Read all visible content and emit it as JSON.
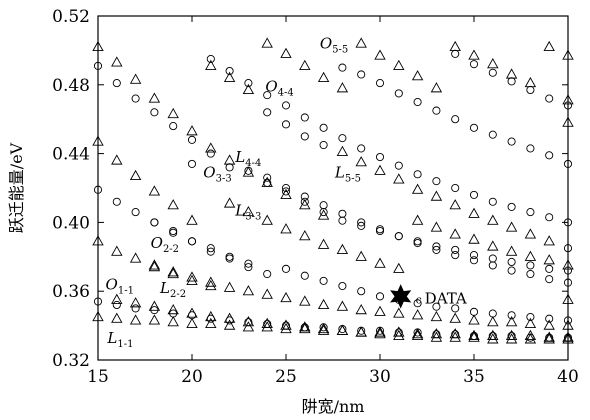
{
  "chart_data": {
    "type": "scatter",
    "title": "",
    "xlabel": "阱宽/nm",
    "ylabel": "跃迁能量/eV",
    "xlim": [
      15,
      40
    ],
    "ylim": [
      0.32,
      0.52
    ],
    "xticks": [
      15,
      20,
      25,
      30,
      35,
      40
    ],
    "yticks": [
      0.32,
      0.36,
      0.4,
      0.44,
      0.48,
      0.52
    ],
    "ytick_labels": [
      "0.32",
      "0.36",
      "0.40",
      "0.44",
      "0.48",
      "0.52"
    ],
    "grid": false,
    "series": [
      {
        "name": "",
        "marker": "triangle",
        "points": [
          [
            15,
            0.502
          ],
          [
            16,
            0.493
          ],
          [
            17,
            0.483
          ],
          [
            18,
            0.472
          ],
          [
            19,
            0.463
          ],
          [
            20,
            0.453
          ],
          [
            21,
            0.491
          ],
          [
            22,
            0.484
          ],
          [
            23,
            0.477
          ],
          [
            24,
            0.504
          ],
          [
            25,
            0.498
          ],
          [
            26,
            0.491
          ],
          [
            27,
            0.484
          ],
          [
            28,
            0.478
          ],
          [
            29,
            0.504
          ],
          [
            30,
            0.497
          ],
          [
            31,
            0.491
          ],
          [
            32,
            0.485
          ],
          [
            33,
            0.478
          ],
          [
            34,
            0.502
          ],
          [
            35,
            0.497
          ],
          [
            36,
            0.492
          ],
          [
            37,
            0.486
          ],
          [
            38,
            0.481
          ],
          [
            39,
            0.502
          ],
          [
            40,
            0.497
          ],
          [
            15,
            0.447
          ],
          [
            16,
            0.436
          ],
          [
            17,
            0.427
          ],
          [
            18,
            0.418
          ],
          [
            19,
            0.41
          ],
          [
            20,
            0.401
          ],
          [
            21,
            0.443
          ],
          [
            22,
            0.436
          ],
          [
            23,
            0.429
          ],
          [
            24,
            0.423
          ],
          [
            25,
            0.416
          ],
          [
            26,
            0.41
          ],
          [
            27,
            0.404
          ],
          [
            28,
            0.441
          ],
          [
            29,
            0.435
          ],
          [
            30,
            0.43
          ],
          [
            31,
            0.425
          ],
          [
            32,
            0.419
          ],
          [
            33,
            0.415
          ],
          [
            34,
            0.41
          ],
          [
            35,
            0.405
          ],
          [
            36,
            0.401
          ],
          [
            37,
            0.397
          ],
          [
            38,
            0.393
          ],
          [
            39,
            0.389
          ],
          [
            40,
            0.471
          ],
          [
            15,
            0.389
          ],
          [
            16,
            0.383
          ],
          [
            17,
            0.379
          ],
          [
            18,
            0.374
          ],
          [
            19,
            0.37
          ],
          [
            20,
            0.366
          ],
          [
            21,
            0.363
          ],
          [
            22,
            0.411
          ],
          [
            23,
            0.406
          ],
          [
            24,
            0.401
          ],
          [
            25,
            0.396
          ],
          [
            26,
            0.392
          ],
          [
            27,
            0.387
          ],
          [
            28,
            0.384
          ],
          [
            29,
            0.38
          ],
          [
            30,
            0.376
          ],
          [
            31,
            0.373
          ],
          [
            32,
            0.401
          ],
          [
            33,
            0.397
          ],
          [
            34,
            0.393
          ],
          [
            35,
            0.39
          ],
          [
            36,
            0.386
          ],
          [
            37,
            0.383
          ],
          [
            38,
            0.38
          ],
          [
            39,
            0.378
          ],
          [
            40,
            0.375
          ],
          [
            15,
            0.345
          ],
          [
            16,
            0.344
          ],
          [
            17,
            0.343
          ],
          [
            18,
            0.343
          ],
          [
            19,
            0.342
          ],
          [
            20,
            0.341
          ],
          [
            21,
            0.341
          ],
          [
            22,
            0.34
          ],
          [
            23,
            0.339
          ],
          [
            24,
            0.339
          ],
          [
            25,
            0.338
          ],
          [
            26,
            0.338
          ],
          [
            27,
            0.337
          ],
          [
            28,
            0.337
          ],
          [
            29,
            0.336
          ],
          [
            30,
            0.336
          ],
          [
            31,
            0.336
          ],
          [
            32,
            0.335
          ],
          [
            33,
            0.335
          ],
          [
            34,
            0.335
          ],
          [
            35,
            0.334
          ],
          [
            36,
            0.334
          ],
          [
            37,
            0.334
          ],
          [
            38,
            0.334
          ],
          [
            39,
            0.333
          ],
          [
            40,
            0.333
          ],
          [
            16,
            0.355
          ],
          [
            17,
            0.353
          ],
          [
            18,
            0.351
          ],
          [
            19,
            0.349
          ],
          [
            20,
            0.347
          ],
          [
            21,
            0.345
          ],
          [
            22,
            0.344
          ],
          [
            23,
            0.342
          ],
          [
            24,
            0.341
          ],
          [
            25,
            0.34
          ],
          [
            26,
            0.339
          ],
          [
            27,
            0.338
          ],
          [
            28,
            0.337
          ],
          [
            29,
            0.336
          ],
          [
            30,
            0.335
          ],
          [
            31,
            0.334
          ],
          [
            32,
            0.334
          ],
          [
            33,
            0.333
          ],
          [
            34,
            0.333
          ],
          [
            35,
            0.333
          ],
          [
            36,
            0.332
          ],
          [
            37,
            0.332
          ],
          [
            38,
            0.332
          ],
          [
            39,
            0.332
          ],
          [
            40,
            0.332
          ],
          [
            18,
            0.375
          ],
          [
            19,
            0.371
          ],
          [
            20,
            0.368
          ],
          [
            21,
            0.365
          ],
          [
            22,
            0.362
          ],
          [
            23,
            0.36
          ],
          [
            24,
            0.358
          ],
          [
            25,
            0.356
          ],
          [
            26,
            0.354
          ],
          [
            27,
            0.352
          ],
          [
            28,
            0.351
          ],
          [
            29,
            0.349
          ],
          [
            30,
            0.348
          ],
          [
            31,
            0.347
          ],
          [
            32,
            0.346
          ],
          [
            33,
            0.345
          ],
          [
            34,
            0.344
          ],
          [
            35,
            0.343
          ],
          [
            36,
            0.342
          ],
          [
            37,
            0.342
          ],
          [
            38,
            0.341
          ],
          [
            39,
            0.34
          ],
          [
            40,
            0.34
          ],
          [
            40,
            0.355
          ],
          [
            40,
            0.458
          ]
        ]
      },
      {
        "name": "",
        "marker": "circle",
        "points": [
          [
            15,
            0.491
          ],
          [
            16,
            0.481
          ],
          [
            17,
            0.472
          ],
          [
            18,
            0.464
          ],
          [
            19,
            0.456
          ],
          [
            20,
            0.448
          ],
          [
            21,
            0.495
          ],
          [
            22,
            0.488
          ],
          [
            23,
            0.481
          ],
          [
            24,
            0.474
          ],
          [
            25,
            0.468
          ],
          [
            26,
            0.461
          ],
          [
            27,
            0.455
          ],
          [
            28,
            0.449
          ],
          [
            29,
            0.443
          ],
          [
            30,
            0.438
          ],
          [
            31,
            0.433
          ],
          [
            32,
            0.428
          ],
          [
            33,
            0.424
          ],
          [
            34,
            0.42
          ],
          [
            35,
            0.416
          ],
          [
            36,
            0.412
          ],
          [
            37,
            0.409
          ],
          [
            38,
            0.406
          ],
          [
            39,
            0.403
          ],
          [
            40,
            0.4
          ],
          [
            15,
            0.419
          ],
          [
            16,
            0.412
          ],
          [
            17,
            0.406
          ],
          [
            18,
            0.4
          ],
          [
            19,
            0.395
          ],
          [
            20,
            0.389
          ],
          [
            21,
            0.385
          ],
          [
            22,
            0.38
          ],
          [
            23,
            0.376
          ],
          [
            24,
            0.426
          ],
          [
            25,
            0.42
          ],
          [
            26,
            0.415
          ],
          [
            27,
            0.41
          ],
          [
            28,
            0.405
          ],
          [
            29,
            0.4
          ],
          [
            30,
            0.396
          ],
          [
            31,
            0.392
          ],
          [
            32,
            0.388
          ],
          [
            33,
            0.384
          ],
          [
            34,
            0.381
          ],
          [
            35,
            0.378
          ],
          [
            36,
            0.375
          ],
          [
            37,
            0.372
          ],
          [
            38,
            0.37
          ],
          [
            39,
            0.367
          ],
          [
            40,
            0.365
          ],
          [
            15,
            0.354
          ],
          [
            16,
            0.352
          ],
          [
            17,
            0.35
          ],
          [
            18,
            0.349
          ],
          [
            19,
            0.347
          ],
          [
            20,
            0.346
          ],
          [
            21,
            0.344
          ],
          [
            22,
            0.343
          ],
          [
            23,
            0.342
          ],
          [
            24,
            0.341
          ],
          [
            25,
            0.34
          ],
          [
            26,
            0.339
          ],
          [
            27,
            0.339
          ],
          [
            28,
            0.338
          ],
          [
            29,
            0.337
          ],
          [
            30,
            0.337
          ],
          [
            31,
            0.336
          ],
          [
            32,
            0.336
          ],
          [
            33,
            0.335
          ],
          [
            34,
            0.335
          ],
          [
            35,
            0.334
          ],
          [
            36,
            0.334
          ],
          [
            37,
            0.334
          ],
          [
            38,
            0.333
          ],
          [
            39,
            0.333
          ],
          [
            40,
            0.333
          ],
          [
            20,
            0.434
          ],
          [
            21,
            0.44
          ],
          [
            22,
            0.432
          ],
          [
            23,
            0.43
          ],
          [
            24,
            0.423
          ],
          [
            25,
            0.418
          ],
          [
            26,
            0.412
          ],
          [
            27,
            0.406
          ],
          [
            28,
            0.401
          ],
          [
            29,
            0.398
          ],
          [
            30,
            0.395
          ],
          [
            31,
            0.392
          ],
          [
            32,
            0.389
          ],
          [
            33,
            0.386
          ],
          [
            34,
            0.384
          ],
          [
            35,
            0.381
          ],
          [
            36,
            0.379
          ],
          [
            37,
            0.377
          ],
          [
            38,
            0.375
          ],
          [
            39,
            0.373
          ],
          [
            40,
            0.372
          ],
          [
            24,
            0.464
          ],
          [
            25,
            0.457
          ],
          [
            26,
            0.45
          ],
          [
            27,
            0.445
          ],
          [
            28,
            0.49
          ],
          [
            29,
            0.486
          ],
          [
            30,
            0.481
          ],
          [
            31,
            0.475
          ],
          [
            32,
            0.47
          ],
          [
            33,
            0.465
          ],
          [
            34,
            0.46
          ],
          [
            35,
            0.455
          ],
          [
            36,
            0.451
          ],
          [
            37,
            0.447
          ],
          [
            38,
            0.443
          ],
          [
            39,
            0.439
          ],
          [
            40,
            0.434
          ],
          [
            18,
            0.4
          ],
          [
            19,
            0.394
          ],
          [
            20,
            0.389
          ],
          [
            21,
            0.383
          ],
          [
            22,
            0.379
          ],
          [
            23,
            0.374
          ],
          [
            24,
            0.37
          ],
          [
            25,
            0.373
          ],
          [
            26,
            0.369
          ],
          [
            27,
            0.366
          ],
          [
            28,
            0.363
          ],
          [
            29,
            0.36
          ],
          [
            30,
            0.357
          ],
          [
            31,
            0.355
          ],
          [
            32,
            0.353
          ],
          [
            33,
            0.351
          ],
          [
            34,
            0.35
          ],
          [
            35,
            0.348
          ],
          [
            36,
            0.347
          ],
          [
            37,
            0.346
          ],
          [
            38,
            0.345
          ],
          [
            39,
            0.344
          ],
          [
            40,
            0.343
          ],
          [
            34,
            0.498
          ],
          [
            35,
            0.492
          ],
          [
            36,
            0.487
          ],
          [
            37,
            0.482
          ],
          [
            38,
            0.477
          ],
          [
            39,
            0.472
          ],
          [
            40,
            0.468
          ],
          [
            40,
            0.385
          ]
        ]
      }
    ],
    "curve_labels": [
      {
        "main": "O",
        "sub": "5-5",
        "x": 26.8,
        "y": 0.501
      },
      {
        "main": "O",
        "sub": "4-4",
        "x": 23.9,
        "y": 0.476
      },
      {
        "main": "L",
        "sub": "4-4",
        "x": 22.3,
        "y": 0.435
      },
      {
        "main": "O",
        "sub": "3-3",
        "x": 20.6,
        "y": 0.426
      },
      {
        "main": "L",
        "sub": "5-5",
        "x": 27.6,
        "y": 0.426
      },
      {
        "main": "L",
        "sub": "3-3",
        "x": 22.3,
        "y": 0.404
      },
      {
        "main": "O",
        "sub": "2-2",
        "x": 17.8,
        "y": 0.385
      },
      {
        "main": "O",
        "sub": "1-1",
        "x": 15.4,
        "y": 0.361
      },
      {
        "main": "L",
        "sub": "2-2",
        "x": 18.3,
        "y": 0.359
      },
      {
        "main": "L",
        "sub": "1-1",
        "x": 15.5,
        "y": 0.33
      }
    ],
    "highlight": {
      "marker": "star",
      "x": 31.1,
      "y": 0.357,
      "label": "DATA",
      "prefix": "c"
    }
  }
}
